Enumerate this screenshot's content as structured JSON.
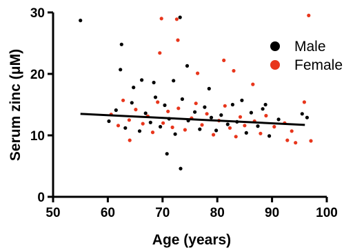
{
  "chart_data": {
    "type": "scatter",
    "xlabel": "Age (years)",
    "ylabel": "Serum zinc (μM)",
    "xlim": [
      50,
      100
    ],
    "ylim": [
      0,
      30
    ],
    "x_ticks": [
      50,
      60,
      70,
      80,
      90,
      100
    ],
    "y_ticks": [
      0,
      10,
      20,
      30
    ],
    "grid": false,
    "legend_position": "top-right",
    "colors": {
      "male": "#000000",
      "female": "#e8361c"
    },
    "series": [
      {
        "name": "Male",
        "points": [
          [
            55.0,
            28.7
          ],
          [
            73.2,
            29.2
          ],
          [
            62.5,
            24.8
          ],
          [
            62.3,
            20.7
          ],
          [
            74.5,
            21.3
          ],
          [
            70.8,
            7.0
          ],
          [
            73.3,
            4.6
          ],
          [
            66.2,
            19.0
          ],
          [
            68.4,
            18.6
          ],
          [
            72.0,
            18.9
          ],
          [
            64.7,
            17.8
          ],
          [
            78.5,
            17.6
          ],
          [
            84.5,
            15.7
          ],
          [
            88.8,
            15.0
          ],
          [
            95.5,
            13.5
          ],
          [
            96.4,
            12.9
          ],
          [
            60.2,
            12.3
          ],
          [
            61.5,
            14.1
          ],
          [
            63.2,
            11.2
          ],
          [
            64.4,
            15.3
          ],
          [
            65.8,
            10.7
          ],
          [
            66.9,
            13.6
          ],
          [
            67.8,
            12.1
          ],
          [
            68.7,
            16.2
          ],
          [
            69.6,
            11.4
          ],
          [
            70.4,
            14.9
          ],
          [
            71.2,
            12.7
          ],
          [
            72.3,
            10.2
          ],
          [
            73.6,
            15.9
          ],
          [
            74.7,
            12.4
          ],
          [
            75.9,
            13.8
          ],
          [
            76.8,
            11.0
          ],
          [
            77.7,
            14.6
          ],
          [
            78.9,
            12.9
          ],
          [
            79.8,
            10.8
          ],
          [
            80.7,
            13.3
          ],
          [
            81.9,
            11.8
          ],
          [
            82.8,
            15.0
          ],
          [
            83.6,
            12.2
          ],
          [
            85.3,
            10.4
          ],
          [
            86.2,
            13.7
          ],
          [
            87.4,
            11.5
          ],
          [
            88.3,
            14.3
          ],
          [
            89.5,
            9.9
          ],
          [
            91.2,
            12.6
          ]
        ]
      },
      {
        "name": "Female",
        "points": [
          [
            69.8,
            29.0
          ],
          [
            72.6,
            28.9
          ],
          [
            96.7,
            29.5
          ],
          [
            72.8,
            25.5
          ],
          [
            69.5,
            23.4
          ],
          [
            81.2,
            22.2
          ],
          [
            83.0,
            20.5
          ],
          [
            76.4,
            20.1
          ],
          [
            86.5,
            18.3
          ],
          [
            95.9,
            15.4
          ],
          [
            92.8,
            9.2
          ],
          [
            94.3,
            8.8
          ],
          [
            97.1,
            9.1
          ],
          [
            60.6,
            13.4
          ],
          [
            61.9,
            11.6
          ],
          [
            62.8,
            15.7
          ],
          [
            63.9,
            12.5
          ],
          [
            65.1,
            14.2
          ],
          [
            66.4,
            11.9
          ],
          [
            67.3,
            13.1
          ],
          [
            68.2,
            10.5
          ],
          [
            69.1,
            15.4
          ],
          [
            70.1,
            12.0
          ],
          [
            71.0,
            13.9
          ],
          [
            71.8,
            11.3
          ],
          [
            72.9,
            14.4
          ],
          [
            74.1,
            10.9
          ],
          [
            75.3,
            12.8
          ],
          [
            76.1,
            15.2
          ],
          [
            77.2,
            11.7
          ],
          [
            78.1,
            13.5
          ],
          [
            79.3,
            10.1
          ],
          [
            80.3,
            12.4
          ],
          [
            81.4,
            14.8
          ],
          [
            82.3,
            11.2
          ],
          [
            83.4,
            9.8
          ],
          [
            84.2,
            13.0
          ],
          [
            85.0,
            11.6
          ],
          [
            86.8,
            12.3
          ],
          [
            87.9,
            10.3
          ],
          [
            88.9,
            13.2
          ],
          [
            90.4,
            11.4
          ],
          [
            92.3,
            12.0
          ],
          [
            93.6,
            10.7
          ],
          [
            64.0,
            9.2
          ]
        ]
      }
    ],
    "trend_line": {
      "x": [
        55,
        96
      ],
      "y": [
        13.5,
        11.7
      ]
    }
  }
}
